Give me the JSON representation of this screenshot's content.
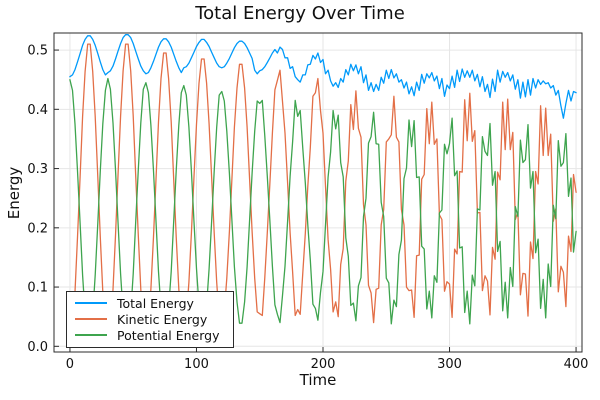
{
  "figure": {
    "title": "Total Energy Over Time",
    "xlabel": "Time",
    "ylabel": "Energy"
  },
  "colors": {
    "total": "#009AFA",
    "kinetic": "#E36F47",
    "potential": "#3EA44E",
    "grid": "#E6E6E6",
    "frame": "#2B2B2B",
    "text": "#111111",
    "legend_border": "#2B2B2B",
    "background": "#FFFFFF"
  },
  "legend": {
    "position": "bottom-left",
    "entries": [
      {
        "label": "Total Energy",
        "color": "#009AFA"
      },
      {
        "label": "Kinetic Energy",
        "color": "#E36F47"
      },
      {
        "label": "Potential Energy",
        "color": "#3EA44E"
      }
    ]
  },
  "chart_data": {
    "type": "line",
    "title": "Total Energy Over Time",
    "xlabel": "Time",
    "ylabel": "Energy",
    "grid": true,
    "legend_position": "bottom-left",
    "xlim": [
      -12.6,
      404.7
    ],
    "ylim": [
      -0.0096,
      0.5288
    ],
    "xticks": {
      "values": [
        0,
        100,
        200,
        300,
        400
      ],
      "labels": [
        "0",
        "100",
        "200",
        "300",
        "400"
      ]
    },
    "yticks": {
      "values": [
        0.0,
        0.1,
        0.2,
        0.3,
        0.4,
        0.5
      ],
      "labels": [
        "0.0",
        "0.1",
        "0.2",
        "0.3",
        "0.4",
        "0.5"
      ]
    },
    "t_start": 0,
    "t_step": 2,
    "series": [
      {
        "name": "Total Energy",
        "color": "#009AFA",
        "values": [
          0.455,
          0.458,
          0.467,
          0.48,
          0.494,
          0.508,
          0.518,
          0.524,
          0.524,
          0.518,
          0.508,
          0.494,
          0.48,
          0.467,
          0.458,
          0.462,
          0.465,
          0.473,
          0.485,
          0.498,
          0.511,
          0.521,
          0.526,
          0.526,
          0.521,
          0.511,
          0.498,
          0.485,
          0.473,
          0.465,
          0.46,
          0.462,
          0.47,
          0.481,
          0.493,
          0.505,
          0.514,
          0.519,
          0.519,
          0.514,
          0.505,
          0.493,
          0.481,
          0.47,
          0.462,
          0.47,
          0.472,
          0.478,
          0.487,
          0.496,
          0.506,
          0.513,
          0.518,
          0.518,
          0.513,
          0.506,
          0.496,
          0.487,
          0.478,
          0.472,
          0.47,
          0.472,
          0.478,
          0.486,
          0.495,
          0.504,
          0.511,
          0.515,
          0.515,
          0.511,
          0.504,
          0.495,
          0.486,
          0.466,
          0.46,
          0.465,
          0.467,
          0.472,
          0.479,
          0.487,
          0.495,
          0.501,
          0.495,
          0.505,
          0.501,
          0.487,
          0.487,
          0.469,
          0.472,
          0.455,
          0.45,
          0.446,
          0.458,
          0.458,
          0.475,
          0.476,
          0.491,
          0.485,
          0.495,
          0.479,
          0.484,
          0.46,
          0.466,
          0.448,
          0.439,
          0.445,
          0.437,
          0.452,
          0.446,
          0.467,
          0.458,
          0.476,
          0.465,
          0.475,
          0.46,
          0.472,
          0.445,
          0.458,
          0.432,
          0.445,
          0.43,
          0.442,
          0.432,
          0.454,
          0.444,
          0.466,
          0.452,
          0.467,
          0.453,
          0.46,
          0.446,
          0.45,
          0.436,
          0.446,
          0.426,
          0.438,
          0.423,
          0.446,
          0.432,
          0.459,
          0.444,
          0.46,
          0.453,
          0.462,
          0.448,
          0.456,
          0.435,
          0.452,
          0.422,
          0.441,
          0.435,
          0.456,
          0.437,
          0.466,
          0.447,
          0.468,
          0.454,
          0.465,
          0.454,
          0.466,
          0.448,
          0.459,
          0.438,
          0.455,
          0.43,
          0.442,
          0.42,
          0.451,
          0.43,
          0.466,
          0.446,
          0.464,
          0.454,
          0.462,
          0.448,
          0.458,
          0.434,
          0.45,
          0.419,
          0.446,
          0.421,
          0.45,
          0.424,
          0.452,
          0.436,
          0.45,
          0.442,
          0.448,
          0.443,
          0.445,
          0.436,
          0.44,
          0.424,
          0.432,
          0.406,
          0.385,
          0.41,
          0.432,
          0.414,
          0.43,
          0.428
        ]
      },
      {
        "name": "Kinetic Energy",
        "color": "#E36F47",
        "values": [
          0.005,
          0.025,
          0.092,
          0.184,
          0.286,
          0.388,
          0.464,
          0.51,
          0.51,
          0.464,
          0.388,
          0.286,
          0.184,
          0.092,
          0.025,
          0.01,
          0.03,
          0.096,
          0.187,
          0.288,
          0.389,
          0.465,
          0.51,
          0.51,
          0.465,
          0.389,
          0.288,
          0.187,
          0.096,
          0.03,
          0.015,
          0.034,
          0.097,
          0.185,
          0.282,
          0.379,
          0.452,
          0.495,
          0.495,
          0.452,
          0.379,
          0.282,
          0.185,
          0.097,
          0.034,
          0.03,
          0.048,
          0.108,
          0.191,
          0.283,
          0.375,
          0.444,
          0.485,
          0.485,
          0.444,
          0.375,
          0.283,
          0.191,
          0.108,
          0.048,
          0.04,
          0.058,
          0.115,
          0.194,
          0.282,
          0.37,
          0.436,
          0.476,
          0.476,
          0.436,
          0.37,
          0.282,
          0.194,
          0.115,
          0.058,
          0.055,
          0.052,
          0.116,
          0.192,
          0.276,
          0.36,
          0.433,
          0.449,
          0.466,
          0.413,
          0.36,
          0.276,
          0.192,
          0.126,
          0.052,
          0.062,
          0.054,
          0.124,
          0.19,
          0.27,
          0.335,
          0.422,
          0.428,
          0.452,
          0.398,
          0.36,
          0.27,
          0.18,
          0.13,
          0.058,
          0.075,
          0.05,
          0.138,
          0.165,
          0.279,
          0.313,
          0.408,
          0.366,
          0.431,
          0.368,
          0.353,
          0.239,
          0.205,
          0.103,
          0.09,
          0.04,
          0.096,
          0.098,
          0.205,
          0.231,
          0.345,
          0.35,
          0.357,
          0.422,
          0.353,
          0.345,
          0.231,
          0.205,
          0.1,
          0.094,
          0.095,
          0.049,
          0.153,
          0.154,
          0.282,
          0.29,
          0.401,
          0.342,
          0.412,
          0.341,
          0.35,
          0.222,
          0.214,
          0.093,
          0.109,
          0.105,
          0.049,
          0.164,
          0.156,
          0.295,
          0.294,
          0.416,
          0.347,
          0.427,
          0.346,
          0.364,
          0.225,
          0.226,
          0.094,
          0.119,
          0.11,
          0.053,
          0.167,
          0.147,
          0.294,
          0.281,
          0.412,
          0.332,
          0.417,
          0.332,
          0.361,
          0.214,
          0.227,
          0.087,
          0.123,
          0.122,
          0.051,
          0.176,
          0.148,
          0.295,
          0.274,
          0.406,
          0.322,
          0.402,
          0.322,
          0.358,
          0.211,
          0.232,
          0.092,
          0.135,
          0.125,
          0.067,
          0.186,
          0.16,
          0.29,
          0.26
        ]
      },
      {
        "name": "Potential Energy",
        "color": "#3EA44E",
        "values": [
          0.45,
          0.432,
          0.375,
          0.296,
          0.208,
          0.12,
          0.054,
          0.014,
          0.014,
          0.054,
          0.12,
          0.208,
          0.296,
          0.375,
          0.432,
          0.452,
          0.434,
          0.377,
          0.298,
          0.21,
          0.122,
          0.056,
          0.016,
          0.016,
          0.056,
          0.122,
          0.21,
          0.298,
          0.377,
          0.434,
          0.445,
          0.428,
          0.373,
          0.296,
          0.211,
          0.126,
          0.063,
          0.024,
          0.024,
          0.063,
          0.126,
          0.211,
          0.296,
          0.373,
          0.428,
          0.44,
          0.424,
          0.37,
          0.296,
          0.213,
          0.131,
          0.069,
          0.032,
          0.032,
          0.069,
          0.131,
          0.213,
          0.296,
          0.37,
          0.424,
          0.43,
          0.414,
          0.363,
          0.292,
          0.213,
          0.134,
          0.075,
          0.039,
          0.039,
          0.075,
          0.134,
          0.213,
          0.292,
          0.363,
          0.414,
          0.41,
          0.415,
          0.355,
          0.287,
          0.211,
          0.135,
          0.07,
          0.054,
          0.04,
          0.086,
          0.135,
          0.211,
          0.287,
          0.345,
          0.415,
          0.388,
          0.398,
          0.334,
          0.276,
          0.205,
          0.146,
          0.071,
          0.064,
          0.044,
          0.091,
          0.126,
          0.205,
          0.286,
          0.328,
          0.398,
          0.367,
          0.39,
          0.31,
          0.286,
          0.183,
          0.152,
          0.069,
          0.073,
          0.043,
          0.102,
          0.116,
          0.219,
          0.25,
          0.343,
          0.354,
          0.395,
          0.342,
          0.341,
          0.243,
          0.219,
          0.115,
          0.107,
          0.038,
          0.078,
          0.067,
          0.155,
          0.179,
          0.283,
          0.301,
          0.382,
          0.337,
          0.381,
          0.285,
          0.286,
          0.169,
          0.164,
          0.063,
          0.093,
          0.048,
          0.119,
          0.108,
          0.225,
          0.23,
          0.341,
          0.325,
          0.342,
          0.385,
          0.288,
          0.296,
          0.166,
          0.168,
          0.057,
          0.093,
          0.038,
          0.12,
          0.102,
          0.232,
          0.23,
          0.354,
          0.329,
          0.322,
          0.376,
          0.272,
          0.295,
          0.16,
          0.177,
          0.06,
          0.108,
          0.048,
          0.133,
          0.101,
          0.236,
          0.219,
          0.348,
          0.31,
          0.315,
          0.374,
          0.267,
          0.295,
          0.158,
          0.181,
          0.064,
          0.113,
          0.048,
          0.139,
          0.101,
          0.238,
          0.215,
          0.347,
          0.304,
          0.31,
          0.359,
          0.253,
          0.284,
          0.159,
          0.194
        ]
      }
    ]
  }
}
